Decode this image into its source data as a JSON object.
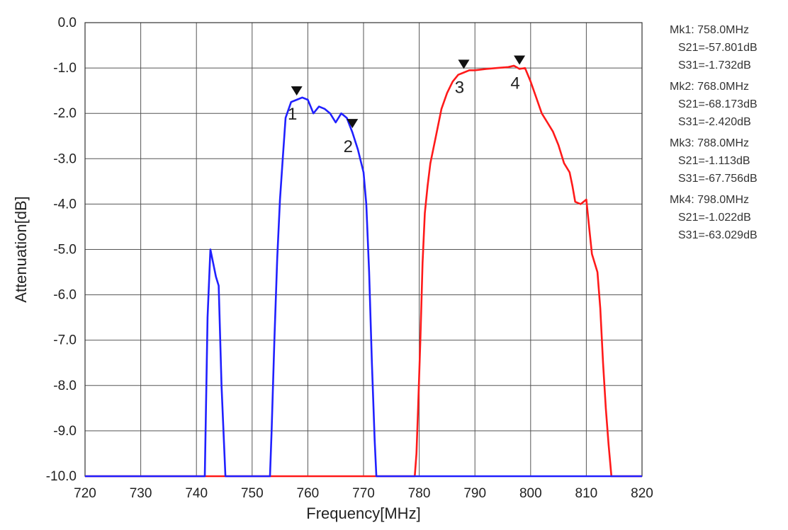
{
  "chart_data": {
    "type": "line",
    "title": "",
    "xlabel": "Frequency[MHz]",
    "ylabel": "Attenuation[dB]",
    "xlim": [
      720,
      820
    ],
    "ylim": [
      -10,
      0
    ],
    "x_ticks": [
      "720",
      "730",
      "740",
      "750",
      "760",
      "770",
      "780",
      "790",
      "800",
      "810",
      "820"
    ],
    "y_ticks": [
      "0.0",
      "-1.0",
      "-2.0",
      "-3.0",
      "-4.0",
      "-5.0",
      "-6.0",
      "-7.0",
      "-8.0",
      "-9.0",
      "-10.0"
    ],
    "grid": true,
    "series": [
      {
        "color": "#ff1a1a",
        "points": [
          [
            720,
            -10
          ],
          [
            779.2,
            -10
          ],
          [
            779.5,
            -9.5
          ],
          [
            779.8,
            -8.5
          ],
          [
            780.2,
            -7
          ],
          [
            780.6,
            -5.3
          ],
          [
            781,
            -4.2
          ],
          [
            781.5,
            -3.6
          ],
          [
            782,
            -3.1
          ],
          [
            783,
            -2.5
          ],
          [
            784,
            -1.9
          ],
          [
            785,
            -1.55
          ],
          [
            786,
            -1.3
          ],
          [
            787,
            -1.15
          ],
          [
            788,
            -1.1
          ],
          [
            789,
            -1.05
          ],
          [
            790,
            -1.05
          ],
          [
            792,
            -1.02
          ],
          [
            794,
            -1.0
          ],
          [
            796,
            -0.98
          ],
          [
            797,
            -0.95
          ],
          [
            798,
            -1.02
          ],
          [
            799,
            -1.0
          ],
          [
            800,
            -1.3
          ],
          [
            801,
            -1.65
          ],
          [
            802,
            -2.0
          ],
          [
            803,
            -2.2
          ],
          [
            804,
            -2.4
          ],
          [
            805,
            -2.7
          ],
          [
            806,
            -3.1
          ],
          [
            807,
            -3.3
          ],
          [
            807.5,
            -3.6
          ],
          [
            808,
            -3.95
          ],
          [
            809,
            -4.0
          ],
          [
            810,
            -3.9
          ],
          [
            810.5,
            -4.5
          ],
          [
            811,
            -5.1
          ],
          [
            812,
            -5.5
          ],
          [
            812.5,
            -6.3
          ],
          [
            813,
            -7.5
          ],
          [
            813.5,
            -8.5
          ],
          [
            814,
            -9.3
          ],
          [
            814.5,
            -10
          ],
          [
            820,
            -10
          ]
        ]
      },
      {
        "color": "#2020ff",
        "points": [
          [
            720,
            -10
          ],
          [
            741.5,
            -10
          ],
          [
            742,
            -6.5
          ],
          [
            742.5,
            -5.0
          ],
          [
            743,
            -5.3
          ],
          [
            743.5,
            -5.6
          ],
          [
            744,
            -5.8
          ],
          [
            744.5,
            -8
          ],
          [
            745.2,
            -10
          ],
          [
            753.2,
            -10
          ],
          [
            753.5,
            -9
          ],
          [
            754,
            -7
          ],
          [
            754.5,
            -5.2
          ],
          [
            755,
            -3.9
          ],
          [
            755.5,
            -3.0
          ],
          [
            756,
            -2.1
          ],
          [
            757,
            -1.75
          ],
          [
            758,
            -1.7
          ],
          [
            759,
            -1.65
          ],
          [
            760,
            -1.7
          ],
          [
            761,
            -2.0
          ],
          [
            762,
            -1.85
          ],
          [
            763,
            -1.9
          ],
          [
            764,
            -2.0
          ],
          [
            765,
            -2.2
          ],
          [
            766,
            -2.0
          ],
          [
            767,
            -2.1
          ],
          [
            768,
            -2.42
          ],
          [
            769,
            -2.8
          ],
          [
            770,
            -3.3
          ],
          [
            770.5,
            -4.0
          ],
          [
            771,
            -5.5
          ],
          [
            771.5,
            -7.5
          ],
          [
            772,
            -9.2
          ],
          [
            772.3,
            -10
          ],
          [
            820,
            -10
          ]
        ]
      }
    ],
    "markers": [
      {
        "label": "1",
        "x": 758,
        "y": -1.7
      },
      {
        "label": "2",
        "x": 768,
        "y": -2.42
      },
      {
        "label": "3",
        "x": 788,
        "y": -1.113
      },
      {
        "label": "4",
        "x": 798,
        "y": -1.022
      }
    ]
  },
  "readouts": [
    {
      "mk": "Mk1:  758.0MHz",
      "s21": "S21=-57.801dB",
      "s31": "S31=-1.732dB"
    },
    {
      "mk": "Mk2:  768.0MHz",
      "s21": "S21=-68.173dB",
      "s31": "S31=-2.420dB"
    },
    {
      "mk": "Mk3:  788.0MHz",
      "s21": "S21=-1.113dB",
      "s31": "S31=-67.756dB"
    },
    {
      "mk": "Mk4:  798.0MHz",
      "s21": "S21=-1.022dB",
      "s31": "S31=-63.029dB"
    }
  ]
}
